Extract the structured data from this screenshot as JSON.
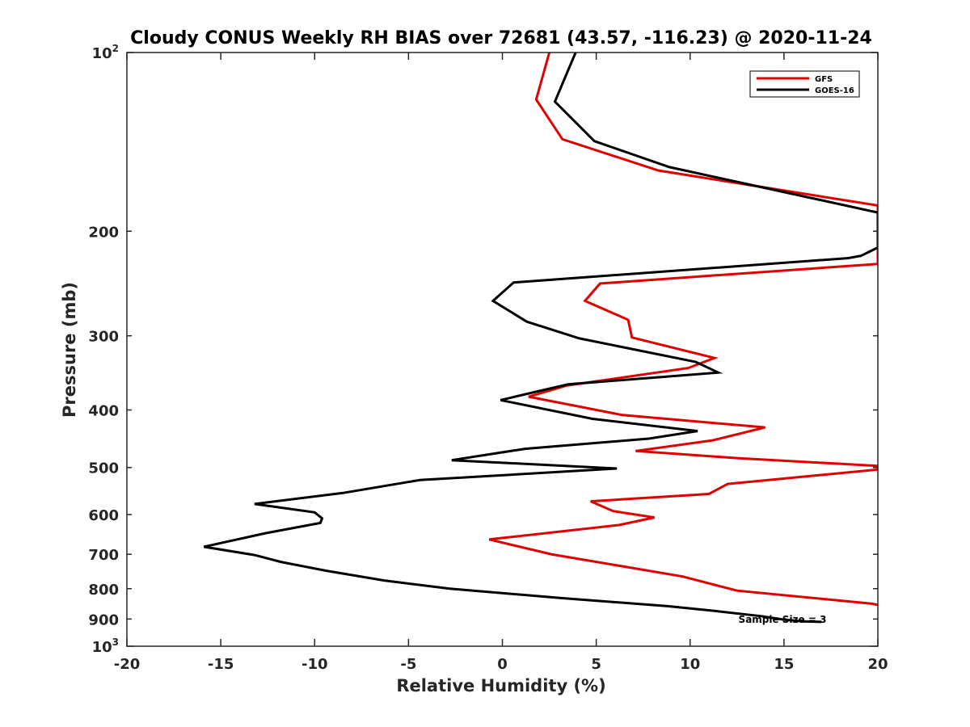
{
  "chart_data": {
    "type": "line",
    "title": "Cloudy CONUS Weekly RH BIAS over 72681 (43.57, -116.23) @ 2020-11-24",
    "xlabel": "Relative Humidity (%)",
    "ylabel": "Pressure (mb)",
    "xlim": [
      -20,
      20
    ],
    "ylim": [
      100,
      1000
    ],
    "y_scale": "log",
    "y_reversed": true,
    "grid": false,
    "legend_position": "top-right",
    "x_ticks": [
      "-20",
      "-15",
      "-10",
      "-5",
      "0",
      "5",
      "10",
      "15",
      "20"
    ],
    "y_ticks": [
      {
        "value": 100,
        "label": "10",
        "sup": "2"
      },
      {
        "value": 200,
        "label": "200",
        "sup": ""
      },
      {
        "value": 300,
        "label": "300",
        "sup": ""
      },
      {
        "value": 400,
        "label": "400",
        "sup": ""
      },
      {
        "value": 500,
        "label": "500",
        "sup": ""
      },
      {
        "value": 600,
        "label": "600",
        "sup": ""
      },
      {
        "value": 700,
        "label": "700",
        "sup": ""
      },
      {
        "value": 800,
        "label": "800",
        "sup": ""
      },
      {
        "value": 900,
        "label": "900",
        "sup": ""
      },
      {
        "value": 1000,
        "label": "10",
        "sup": "3"
      }
    ],
    "annotation": "Sample Size = 3",
    "series": [
      {
        "name": "GFS",
        "color": "#e00000",
        "points": [
          [
            2.5,
            100
          ],
          [
            1.8,
            120
          ],
          [
            3.2,
            140
          ],
          [
            8.3,
            158
          ],
          [
            20,
            181
          ],
          [
            20,
            227
          ],
          [
            5.2,
            245
          ],
          [
            4.4,
            262
          ],
          [
            6.7,
            282
          ],
          [
            6.9,
            302
          ],
          [
            11.3,
            327
          ],
          [
            9.9,
            340
          ],
          [
            3.4,
            364
          ],
          [
            1.4,
            380
          ],
          [
            6.4,
            408
          ],
          [
            14.0,
            428
          ],
          [
            11.2,
            450
          ],
          [
            7.1,
            469
          ],
          [
            12.4,
            482
          ],
          [
            20,
            497
          ],
          [
            20,
            504
          ],
          [
            12.0,
            533
          ],
          [
            11.0,
            554
          ],
          [
            4.7,
            570
          ],
          [
            5.9,
            592
          ],
          [
            8.1,
            607
          ],
          [
            6.2,
            625
          ],
          [
            -0.7,
            661
          ],
          [
            2.6,
            700
          ],
          [
            9.6,
            763
          ],
          [
            12.5,
            806
          ],
          [
            19.7,
            848
          ],
          [
            20,
            852
          ]
        ]
      },
      {
        "name": "GOES-16",
        "color": "#000000",
        "points": [
          [
            3.9,
            100
          ],
          [
            2.8,
            121
          ],
          [
            4.9,
            141
          ],
          [
            8.9,
            156
          ],
          [
            20,
            186
          ],
          [
            20,
            213
          ],
          [
            19.1,
            220
          ],
          [
            18.4,
            222
          ],
          [
            0.6,
            244
          ],
          [
            -0.5,
            262
          ],
          [
            1.3,
            284
          ],
          [
            4.1,
            303
          ],
          [
            10.3,
            332
          ],
          [
            11.5,
            346
          ],
          [
            3.5,
            362
          ],
          [
            -0.1,
            385
          ],
          [
            4.8,
            414
          ],
          [
            10.4,
            434
          ],
          [
            7.8,
            447
          ],
          [
            1.2,
            465
          ],
          [
            -2.7,
            486
          ],
          [
            6.1,
            502
          ],
          [
            -4.4,
            525
          ],
          [
            -8.5,
            552
          ],
          [
            -13.2,
            576
          ],
          [
            -10.0,
            595
          ],
          [
            -9.6,
            609
          ],
          [
            -9.7,
            620
          ],
          [
            -12.6,
            645
          ],
          [
            -15.9,
            680
          ],
          [
            -13.2,
            702
          ],
          [
            -11.8,
            721
          ],
          [
            -9.4,
            746
          ],
          [
            -6.3,
            775
          ],
          [
            -2.8,
            800
          ],
          [
            3.2,
            830
          ],
          [
            8.8,
            856
          ],
          [
            11.3,
            872
          ],
          [
            13.8,
            890
          ],
          [
            15.0,
            902
          ],
          [
            16.0,
            908
          ],
          [
            17.0,
            910
          ]
        ]
      }
    ]
  }
}
